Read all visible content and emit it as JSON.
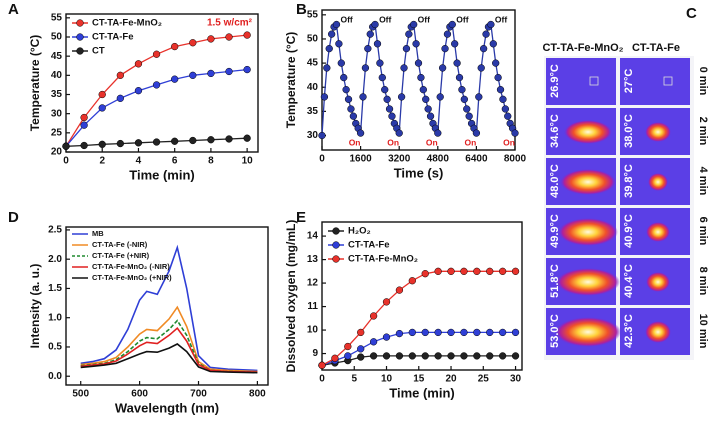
{
  "chart_data": [
    {
      "type": "line",
      "panel": "A",
      "xlabel": "Time (min)",
      "ylabel": "Temperature (°C)",
      "legend": "upper left",
      "annotation": "1.5 w/cm²",
      "x": [
        0,
        1,
        2,
        3,
        4,
        5,
        6,
        7,
        8,
        9,
        10
      ],
      "xlim": [
        0,
        10.6
      ],
      "ylim": [
        20,
        56
      ],
      "xticks": [
        0,
        2,
        4,
        6,
        8,
        10
      ],
      "yticks": [
        20,
        25,
        30,
        35,
        40,
        45,
        50,
        55
      ],
      "marker": "circle",
      "series": [
        {
          "name": "CT-TA-Fe-MnO₂",
          "color": "#e8322b",
          "values": [
            21.5,
            29,
            35,
            40,
            43,
            45.5,
            47.5,
            48.5,
            49.5,
            50,
            50.5
          ]
        },
        {
          "name": "CT-TA-Fe",
          "color": "#2f3fd6",
          "values": [
            21.5,
            27,
            31.5,
            34,
            36,
            37.5,
            39,
            40,
            40.5,
            41,
            41.5
          ]
        },
        {
          "name": "CT",
          "color": "#222222",
          "values": [
            21.5,
            21.7,
            22,
            22.2,
            22.4,
            22.6,
            22.8,
            23,
            23.2,
            23.4,
            23.6
          ]
        }
      ]
    },
    {
      "type": "line",
      "panel": "B",
      "xlabel": "Time (s)",
      "ylabel": "Temperature (°C)",
      "marker": "circle",
      "annotations": [
        "Off",
        "Off",
        "Off",
        "Off",
        "Off",
        "On",
        "On",
        "On",
        "On",
        "On"
      ],
      "x": [
        0,
        100,
        200,
        300,
        400,
        500,
        600,
        700,
        800,
        900,
        1000,
        1100,
        1200,
        1300,
        1400,
        1500,
        1600,
        1700,
        1800,
        1900,
        2000,
        2100,
        2200,
        2300,
        2400,
        2500,
        2600,
        2700,
        2800,
        2900,
        3000,
        3100,
        3200,
        3300,
        3400,
        3500,
        3600,
        3700,
        3800,
        3900,
        4000,
        4100,
        4200,
        4300,
        4400,
        4500,
        4600,
        4700,
        4800,
        4900,
        5000,
        5100,
        5200,
        5300,
        5400,
        5500,
        5600,
        5700,
        5800,
        5900,
        6000,
        6100,
        6200,
        6300,
        6400,
        6500,
        6600,
        6700,
        6800,
        6900,
        7000,
        7100,
        7200,
        7300,
        7400,
        7500,
        7600,
        7700,
        7800,
        7900,
        8000
      ],
      "xlim": [
        0,
        8000
      ],
      "ylim": [
        27,
        56
      ],
      "xticks": [
        0,
        1600,
        3200,
        4800,
        6400,
        8000
      ],
      "yticks": [
        30,
        35,
        40,
        45,
        50,
        55
      ],
      "series": [
        {
          "name": "Temperature",
          "color": "#2a3aa8",
          "values": [
            30,
            38,
            44,
            48,
            51,
            52.5,
            53,
            49,
            45,
            42,
            39.5,
            37.5,
            35.5,
            34,
            32.5,
            31.5,
            30.5,
            38,
            44,
            48,
            51,
            52.5,
            53,
            49,
            45,
            42,
            39.5,
            37.5,
            35.5,
            34,
            32.5,
            31.5,
            30.5,
            38,
            44,
            48,
            51,
            52.5,
            53,
            49,
            45,
            42,
            39.5,
            37.5,
            35.5,
            34,
            32.5,
            31.5,
            30.5,
            38,
            44,
            48,
            51,
            52.5,
            53,
            49,
            45,
            42,
            39.5,
            37.5,
            35.5,
            34,
            32.5,
            31.5,
            30.5,
            38,
            44,
            48,
            51,
            52.5,
            53,
            49,
            45,
            42,
            39.5,
            37.5,
            35.5,
            34,
            32.5,
            31.5,
            30.5
          ]
        }
      ]
    },
    {
      "type": "line",
      "panel": "D",
      "xlabel": "Wavelength (nm)",
      "ylabel": "Intensity (a. u.)",
      "legend": "upper left",
      "x": [
        500,
        520,
        540,
        560,
        580,
        600,
        612,
        630,
        650,
        664,
        680,
        700,
        720,
        750,
        800
      ],
      "xlim": [
        475,
        818
      ],
      "ylim": [
        -0.15,
        2.55
      ],
      "xticks": [
        500,
        600,
        700,
        800
      ],
      "yticks": [
        {
          "value": 0,
          "label": "0.0"
        },
        {
          "value": 0.5,
          "label": "0.5"
        },
        {
          "value": 1,
          "label": "1.0"
        },
        {
          "value": 1.5,
          "label": "1.5"
        },
        {
          "value": 2,
          "label": "2.0"
        },
        {
          "value": 2.5,
          "label": "2.5"
        }
      ],
      "series": [
        {
          "name": "MB",
          "color": "#2f3fd6",
          "values": [
            0.22,
            0.25,
            0.3,
            0.45,
            0.8,
            1.3,
            1.45,
            1.4,
            1.8,
            2.2,
            1.5,
            0.35,
            0.15,
            0.12,
            0.1
          ]
        },
        {
          "name": "CT-TA-Fe (-NIR)",
          "color": "#f08a24",
          "values": [
            0.2,
            0.22,
            0.25,
            0.32,
            0.5,
            0.72,
            0.8,
            0.78,
            0.98,
            1.18,
            0.85,
            0.25,
            0.12,
            0.1,
            0.08
          ]
        },
        {
          "name": "CT-TA-Fe (+NIR)",
          "color": "#1e8a2e",
          "dashed": true,
          "values": [
            0.18,
            0.2,
            0.22,
            0.28,
            0.42,
            0.6,
            0.66,
            0.64,
            0.8,
            0.95,
            0.7,
            0.22,
            0.1,
            0.08,
            0.07
          ]
        },
        {
          "name": "CT-TA-Fe-MnO₂ (-NIR)",
          "color": "#e02020",
          "values": [
            0.17,
            0.19,
            0.21,
            0.26,
            0.38,
            0.52,
            0.58,
            0.56,
            0.7,
            0.82,
            0.6,
            0.2,
            0.1,
            0.08,
            0.07
          ]
        },
        {
          "name": "CT-TA-Fe-MnO₂ (+NIR)",
          "color": "#111111",
          "values": [
            0.15,
            0.17,
            0.19,
            0.22,
            0.3,
            0.38,
            0.42,
            0.41,
            0.48,
            0.55,
            0.42,
            0.16,
            0.08,
            0.07,
            0.06
          ]
        }
      ]
    },
    {
      "type": "line",
      "panel": "E",
      "xlabel": "Time (min)",
      "ylabel": "Dissolved oxygen (mg/mL)",
      "legend": "upper left",
      "marker": "circle",
      "x": [
        0,
        2,
        4,
        6,
        8,
        10,
        12,
        14,
        16,
        18,
        20,
        22,
        24,
        26,
        28,
        30
      ],
      "xlim": [
        0,
        31
      ],
      "ylim": [
        8.3,
        14.6
      ],
      "xticks": [
        0,
        5,
        10,
        15,
        20,
        25,
        30
      ],
      "yticks": [
        9,
        10,
        11,
        12,
        13,
        14
      ],
      "series": [
        {
          "name": "H₂O₂",
          "color": "#222222",
          "values": [
            8.5,
            8.6,
            8.7,
            8.85,
            8.9,
            8.9,
            8.9,
            8.9,
            8.9,
            8.9,
            8.9,
            8.9,
            8.9,
            8.9,
            8.9,
            8.9
          ]
        },
        {
          "name": "CT-TA-Fe",
          "color": "#2f3fd6",
          "values": [
            8.5,
            8.7,
            8.9,
            9.2,
            9.5,
            9.7,
            9.85,
            9.9,
            9.9,
            9.9,
            9.9,
            9.9,
            9.9,
            9.9,
            9.9,
            9.9
          ]
        },
        {
          "name": "CT-TA-Fe-MnO₂",
          "color": "#e8322b",
          "values": [
            8.5,
            8.8,
            9.3,
            9.9,
            10.6,
            11.2,
            11.7,
            12.1,
            12.4,
            12.5,
            12.5,
            12.5,
            12.5,
            12.5,
            12.5,
            12.5
          ]
        }
      ]
    }
  ],
  "thermal_panel": {
    "label": "C",
    "columns": [
      "CT-TA-Fe-MnO₂",
      "CT-TA-Fe"
    ],
    "rows": [
      {
        "time": "0 min",
        "left": "26.9°C",
        "right": "27°C"
      },
      {
        "time": "2 min",
        "left": "34.6°C",
        "right": "38.0°C"
      },
      {
        "time": "4 min",
        "left": "48.0°C",
        "right": "39.8°C"
      },
      {
        "time": "6 min",
        "left": "49.9°C",
        "right": "40.9°C"
      },
      {
        "time": "8 min",
        "left": "51.8°C",
        "right": "40.4°C"
      },
      {
        "time": "10 min",
        "left": "53.0°C",
        "right": "42.3°C"
      }
    ]
  }
}
